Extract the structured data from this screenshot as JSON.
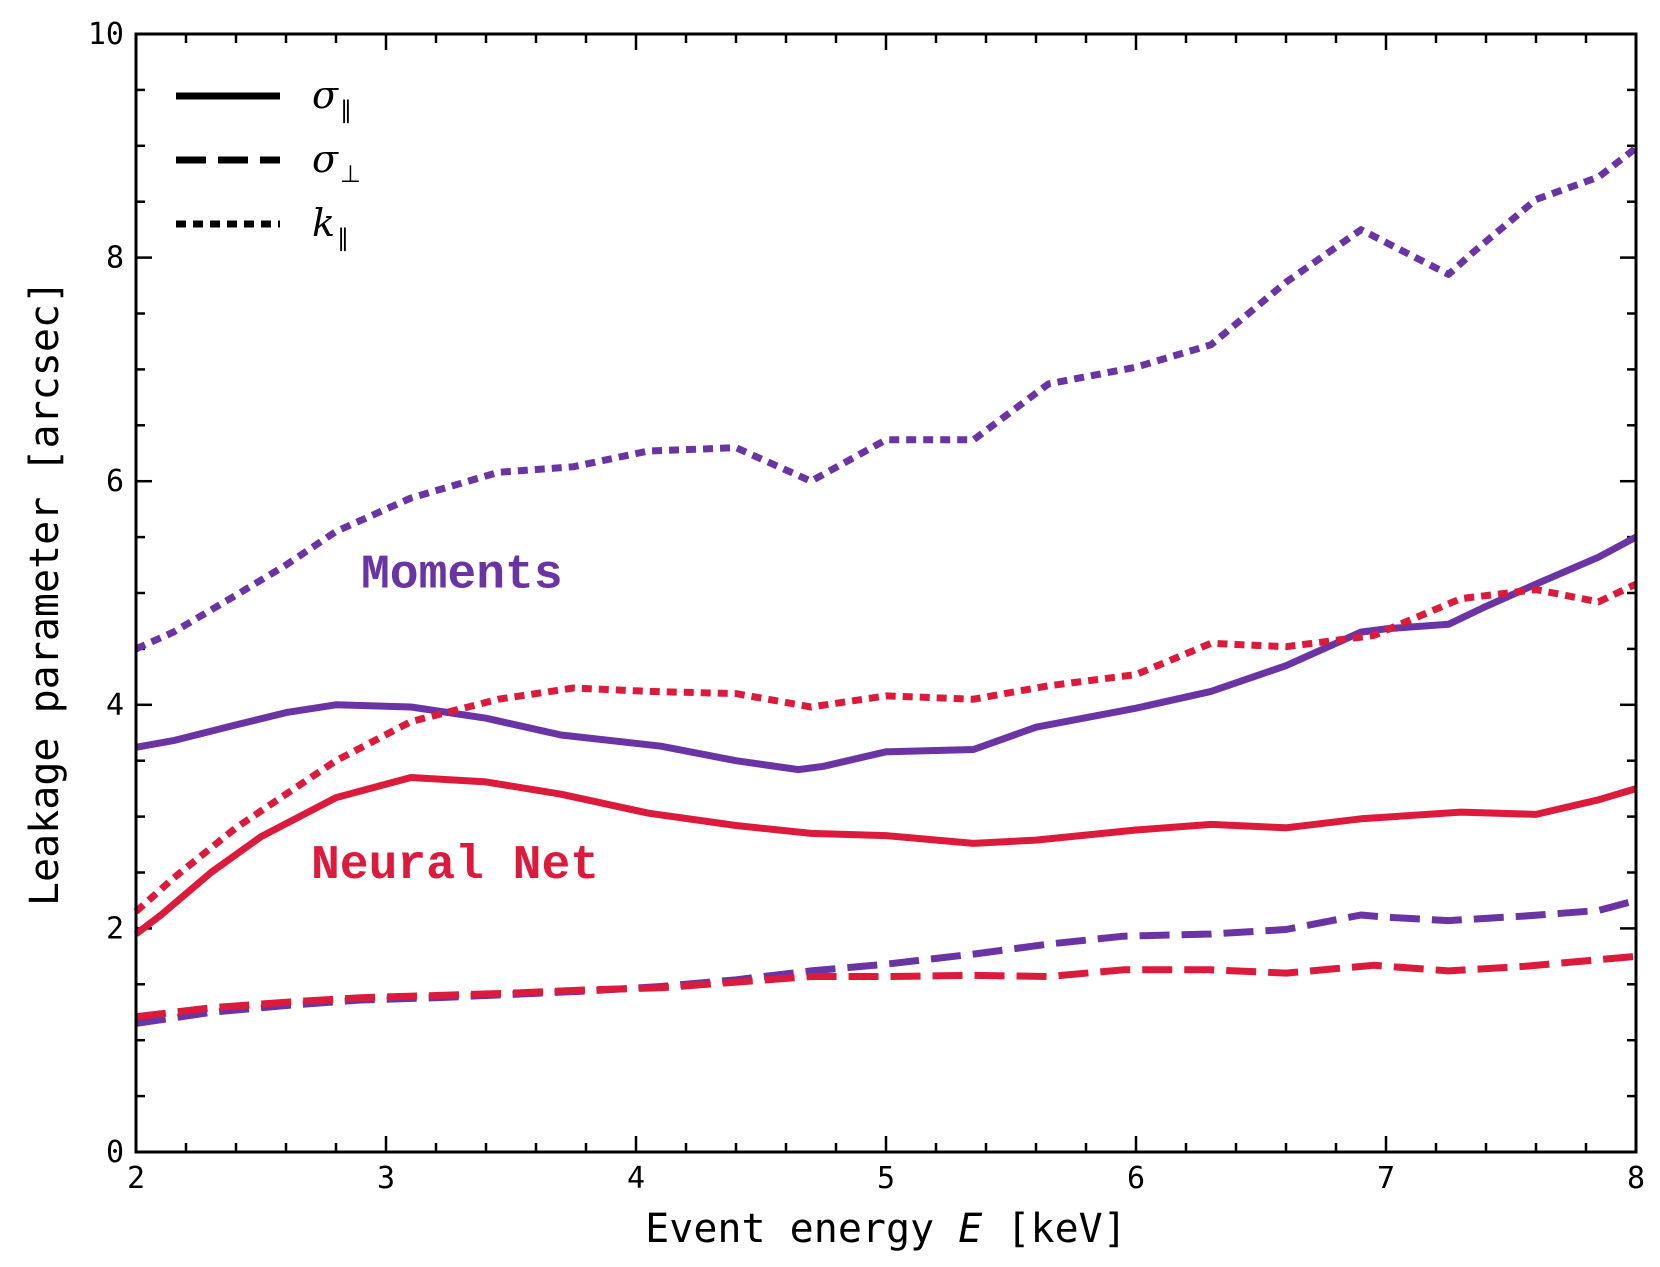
{
  "chart_data": {
    "type": "line",
    "title": "",
    "xlabel": "Event energy E [keV]",
    "xlabel_parts": {
      "pre": "Event energy ",
      "var": "E",
      "post": " [keV]"
    },
    "ylabel": "Leakage parameter [arcsec]",
    "xlim": [
      2,
      8
    ],
    "ylim": [
      0,
      10
    ],
    "x_ticks": [
      2,
      3,
      4,
      5,
      6,
      7,
      8
    ],
    "x_tick_labels": [
      "2",
      "3",
      "4",
      "5",
      "6",
      "7",
      "8"
    ],
    "y_ticks": [
      0,
      2,
      4,
      6,
      8,
      10
    ],
    "y_tick_labels": [
      "0",
      "2",
      "4",
      "6",
      "8",
      "10"
    ],
    "legend": {
      "placement": "top-left",
      "entries": [
        {
          "symbol": "σ",
          "subscript": "∥",
          "style": "solid"
        },
        {
          "symbol": "σ",
          "subscript": "⊥",
          "style": "dashed"
        },
        {
          "symbol": "k",
          "subscript": "∥",
          "style": "dotted"
        }
      ]
    },
    "annotations": [
      {
        "text": "Moments",
        "color": "#6a34a4",
        "at": [
          2.9,
          5.05
        ]
      },
      {
        "text": "Neural Net",
        "color": "#dc1a3c",
        "at": [
          2.7,
          2.45
        ]
      }
    ],
    "series": [
      {
        "name": "Moments σ∥",
        "group": "Moments",
        "color": "#6a34a4",
        "style": "solid",
        "x": [
          2.0,
          2.15,
          2.4,
          2.6,
          2.8,
          3.1,
          3.4,
          3.7,
          4.1,
          4.4,
          4.65,
          4.75,
          5.0,
          5.35,
          5.6,
          6.0,
          6.3,
          6.6,
          6.9,
          7.0,
          7.25,
          7.4,
          7.6,
          7.85,
          8.0
        ],
        "y": [
          3.62,
          3.68,
          3.82,
          3.93,
          4.0,
          3.98,
          3.88,
          3.73,
          3.63,
          3.5,
          3.42,
          3.45,
          3.58,
          3.6,
          3.8,
          3.97,
          4.12,
          4.35,
          4.65,
          4.68,
          4.72,
          4.88,
          5.08,
          5.32,
          5.5
        ]
      },
      {
        "name": "Moments σ⊥",
        "group": "Moments",
        "color": "#6a34a4",
        "style": "dashed",
        "x": [
          2.0,
          2.3,
          2.6,
          2.9,
          3.2,
          3.5,
          3.8,
          4.1,
          4.4,
          4.7,
          5.0,
          5.35,
          5.65,
          5.95,
          6.3,
          6.6,
          6.9,
          7.0,
          7.25,
          7.55,
          7.85,
          8.0
        ],
        "y": [
          1.15,
          1.25,
          1.31,
          1.36,
          1.38,
          1.41,
          1.44,
          1.48,
          1.54,
          1.62,
          1.68,
          1.77,
          1.86,
          1.93,
          1.95,
          1.99,
          2.12,
          2.1,
          2.07,
          2.11,
          2.16,
          2.25
        ]
      },
      {
        "name": "Moments k∥",
        "group": "Moments",
        "color": "#6a34a4",
        "style": "dotted",
        "x": [
          2.0,
          2.15,
          2.4,
          2.6,
          2.8,
          3.1,
          3.45,
          3.75,
          4.05,
          4.4,
          4.7,
          5.0,
          5.35,
          5.65,
          6.0,
          6.3,
          6.6,
          6.9,
          7.25,
          7.35,
          7.6,
          7.85,
          8.0
        ],
        "y": [
          4.5,
          4.65,
          4.98,
          5.25,
          5.55,
          5.85,
          6.08,
          6.13,
          6.27,
          6.3,
          6.0,
          6.37,
          6.37,
          6.87,
          7.02,
          7.22,
          7.78,
          8.25,
          7.85,
          8.05,
          8.52,
          8.72,
          8.98
        ]
      },
      {
        "name": "Neural Net σ∥",
        "group": "Neural Net",
        "color": "#dc1a3c",
        "style": "solid",
        "x": [
          2.0,
          2.1,
          2.3,
          2.5,
          2.8,
          3.1,
          3.4,
          3.7,
          4.05,
          4.4,
          4.7,
          5.0,
          5.35,
          5.6,
          6.0,
          6.3,
          6.6,
          6.9,
          7.3,
          7.6,
          7.85,
          8.0
        ],
        "y": [
          1.95,
          2.12,
          2.5,
          2.82,
          3.17,
          3.35,
          3.31,
          3.2,
          3.03,
          2.92,
          2.85,
          2.83,
          2.76,
          2.79,
          2.88,
          2.93,
          2.9,
          2.98,
          3.04,
          3.02,
          3.15,
          3.25
        ]
      },
      {
        "name": "Neural Net σ⊥",
        "group": "Neural Net",
        "color": "#dc1a3c",
        "style": "dashed",
        "x": [
          2.0,
          2.3,
          2.6,
          2.9,
          3.2,
          3.5,
          3.8,
          4.1,
          4.4,
          4.7,
          5.0,
          5.35,
          5.65,
          5.95,
          6.3,
          6.6,
          6.95,
          7.25,
          7.55,
          7.85,
          8.0
        ],
        "y": [
          1.21,
          1.29,
          1.34,
          1.38,
          1.4,
          1.42,
          1.45,
          1.47,
          1.52,
          1.57,
          1.57,
          1.58,
          1.57,
          1.63,
          1.63,
          1.6,
          1.67,
          1.62,
          1.66,
          1.72,
          1.75
        ]
      },
      {
        "name": "Neural Net k∥",
        "group": "Neural Net",
        "color": "#dc1a3c",
        "style": "dotted",
        "x": [
          2.0,
          2.15,
          2.4,
          2.6,
          2.8,
          3.1,
          3.45,
          3.75,
          4.05,
          4.4,
          4.7,
          5.0,
          5.35,
          5.65,
          6.0,
          6.3,
          6.6,
          6.95,
          7.3,
          7.6,
          7.85,
          8.0
        ],
        "y": [
          2.15,
          2.45,
          2.9,
          3.2,
          3.5,
          3.85,
          4.05,
          4.15,
          4.12,
          4.1,
          3.98,
          4.08,
          4.05,
          4.17,
          4.27,
          4.55,
          4.52,
          4.62,
          4.95,
          5.03,
          4.92,
          5.08
        ]
      }
    ]
  }
}
